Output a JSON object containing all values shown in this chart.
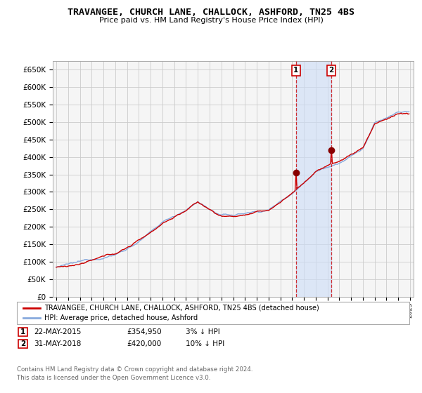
{
  "title": "TRAVANGEE, CHURCH LANE, CHALLOCK, ASHFORD, TN25 4BS",
  "subtitle": "Price paid vs. HM Land Registry's House Price Index (HPI)",
  "ylabel_ticks": [
    "£0",
    "£50K",
    "£100K",
    "£150K",
    "£200K",
    "£250K",
    "£300K",
    "£350K",
    "£400K",
    "£450K",
    "£500K",
    "£550K",
    "£600K",
    "£650K"
  ],
  "ylim": [
    0,
    675000
  ],
  "ytick_vals": [
    0,
    50000,
    100000,
    150000,
    200000,
    250000,
    300000,
    350000,
    400000,
    450000,
    500000,
    550000,
    600000,
    650000
  ],
  "legend1_label": "TRAVANGEE, CHURCH LANE, CHALLOCK, ASHFORD, TN25 4BS (detached house)",
  "legend2_label": "HPI: Average price, detached house, Ashford",
  "line1_color": "#cc0000",
  "line2_color": "#88aadd",
  "fill_color": "#ccddf7",
  "annotation1": {
    "label": "1",
    "date": "22-MAY-2015",
    "price": "£354,950",
    "note": "3% ↓ HPI"
  },
  "annotation2": {
    "label": "2",
    "date": "31-MAY-2018",
    "price": "£420,000",
    "note": "10% ↓ HPI"
  },
  "footer": "Contains HM Land Registry data © Crown copyright and database right 2024.\nThis data is licensed under the Open Government Licence v3.0.",
  "bg_color": "#ffffff",
  "plot_bg_color": "#f5f5f5",
  "grid_color": "#cccccc",
  "t1_year": 2015.37,
  "t2_year": 2018.37,
  "t1_price": 354950,
  "t2_price": 420000
}
